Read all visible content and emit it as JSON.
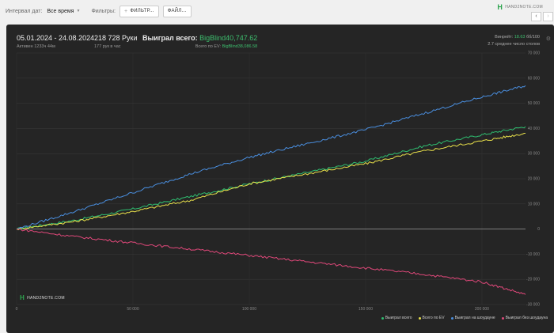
{
  "topbar": {
    "date_interval_label": "Интервал дат:",
    "date_interval_value": "Все время",
    "filters_label": "Фильтры:",
    "add_filter_button": "ФИЛЬТР...",
    "file_button": "ФАЙЛ...",
    "logo_text": "HAND2NOTE.COM"
  },
  "stats": {
    "date_range": "05.01.2024 - 24.08.2024",
    "active": "Активен 1233ч 44м",
    "hands": "218 728 Руки",
    "hands_per_hour": "177 рук в час",
    "won_label": "Выиграл всего:",
    "won_value": "BigBlind40,747.62",
    "ev_label": "Всего по EV:",
    "ev_value": "BigBlind38,086.58",
    "winrate_label": "Винрейт:",
    "winrate_value": "18.63",
    "winrate_unit": "бб/100",
    "avg_tables": "2.7 среднее число столов"
  },
  "watermark": "HAND2NOTE.COM",
  "colors": {
    "total": "#2fbf71",
    "ev": "#e8e04a",
    "showdown": "#4a8fe0",
    "nonshowdown": "#e0487a",
    "zero": "#9a9a9a"
  },
  "chart_data": {
    "type": "line",
    "xlim": [
      0,
      218728
    ],
    "ylim": [
      -30000,
      70000
    ],
    "x_ticks": [
      "0",
      "50 000",
      "100 000",
      "150 000",
      "200 000"
    ],
    "y_ticks": [
      "70 000",
      "60 000",
      "50 000",
      "40 000",
      "30 000",
      "20 000",
      "10 000",
      "0",
      "-10 000",
      "-20 000",
      "-30 000"
    ],
    "x": [
      0,
      25000,
      50000,
      75000,
      100000,
      125000,
      150000,
      175000,
      200000,
      218728
    ],
    "series": [
      {
        "name": "Выиграл всего",
        "key": "total",
        "values": [
          0,
          3500,
          8000,
          13000,
          18000,
          22500,
          27000,
          33000,
          37500,
          40748
        ]
      },
      {
        "name": "Всего по EV",
        "key": "ev",
        "values": [
          0,
          3000,
          7000,
          11500,
          18000,
          22000,
          26000,
          31000,
          35000,
          38087
        ]
      },
      {
        "name": "Выиграл на шоудауне",
        "key": "showdown",
        "values": [
          0,
          7000,
          14500,
          22000,
          28500,
          34000,
          39500,
          46000,
          52500,
          57000
        ]
      },
      {
        "name": "Выиграл без шоудауна",
        "key": "nonshowdown",
        "values": [
          0,
          -3000,
          -5500,
          -8000,
          -10500,
          -13000,
          -15500,
          -18000,
          -21000,
          -26000
        ]
      }
    ]
  }
}
